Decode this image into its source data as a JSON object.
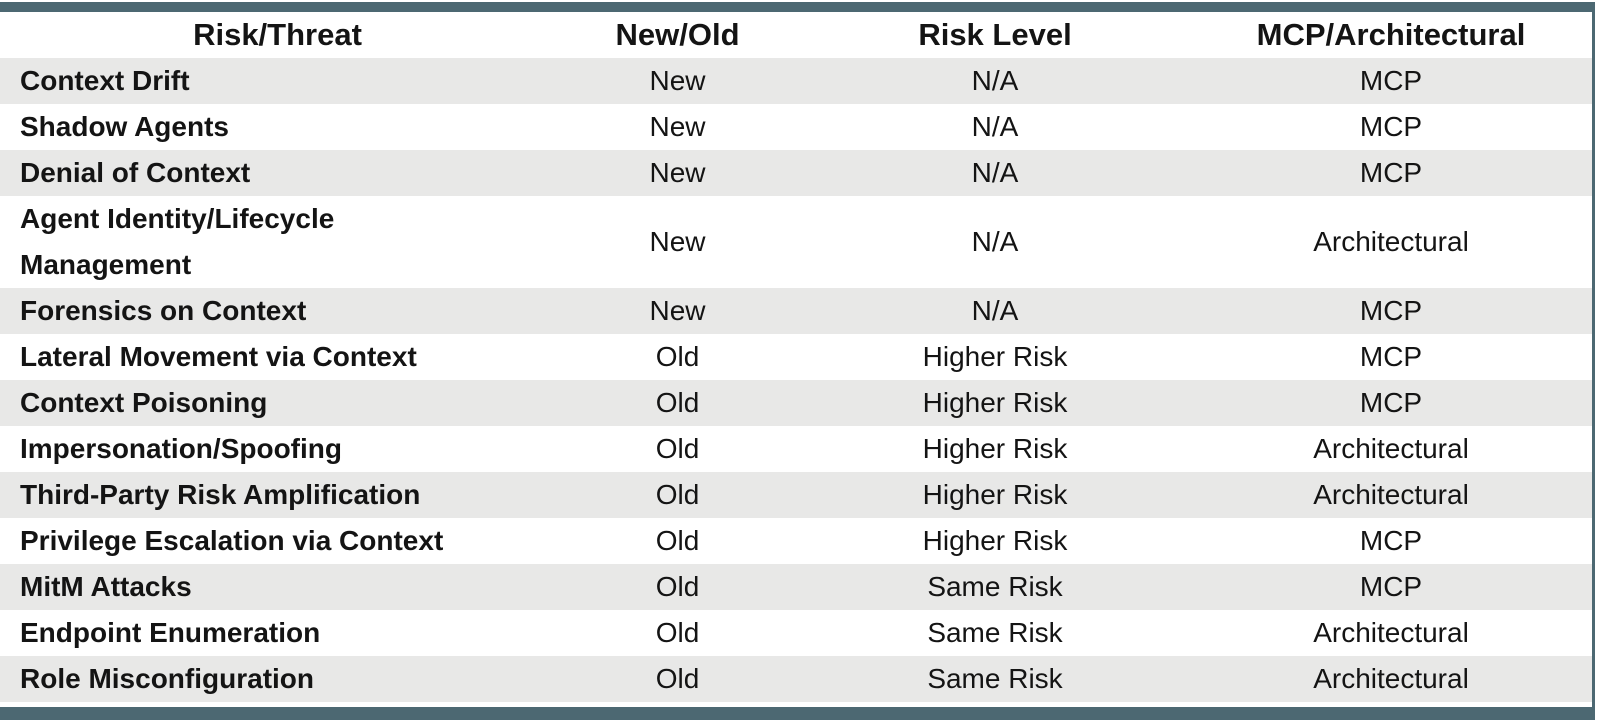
{
  "colors": {
    "accent": "#4c6872",
    "stripe": "#e8e8e7",
    "text": "#141414"
  },
  "table": {
    "columns": [
      "Risk/Threat",
      "New/Old",
      "Risk Level",
      "MCP/Architectural"
    ],
    "rows": [
      {
        "risk_threat": "Context Drift",
        "new_old": "New",
        "risk_level": "N/A",
        "mcp_architectural": "MCP"
      },
      {
        "risk_threat": "Shadow Agents",
        "new_old": "New",
        "risk_level": "N/A",
        "mcp_architectural": "MCP"
      },
      {
        "risk_threat": "Denial of Context",
        "new_old": "New",
        "risk_level": "N/A",
        "mcp_architectural": "MCP"
      },
      {
        "risk_threat": "Agent Identity/Lifecycle\nManagement",
        "new_old": "New",
        "risk_level": "N/A",
        "mcp_architectural": "Architectural"
      },
      {
        "risk_threat": "Forensics on Context",
        "new_old": "New",
        "risk_level": "N/A",
        "mcp_architectural": "MCP"
      },
      {
        "risk_threat": "Lateral Movement via Context",
        "new_old": "Old",
        "risk_level": "Higher Risk",
        "mcp_architectural": "MCP"
      },
      {
        "risk_threat": "Context Poisoning",
        "new_old": "Old",
        "risk_level": "Higher Risk",
        "mcp_architectural": "MCP"
      },
      {
        "risk_threat": "Impersonation/Spoofing",
        "new_old": "Old",
        "risk_level": "Higher Risk",
        "mcp_architectural": "Architectural"
      },
      {
        "risk_threat": "Third-Party Risk Amplification",
        "new_old": "Old",
        "risk_level": "Higher Risk",
        "mcp_architectural": "Architectural"
      },
      {
        "risk_threat": "Privilege Escalation via Context",
        "new_old": "Old",
        "risk_level": "Higher Risk",
        "mcp_architectural": "MCP"
      },
      {
        "risk_threat": "MitM Attacks",
        "new_old": "Old",
        "risk_level": "Same Risk",
        "mcp_architectural": "MCP"
      },
      {
        "risk_threat": "Endpoint Enumeration",
        "new_old": "Old",
        "risk_level": "Same Risk",
        "mcp_architectural": "Architectural"
      },
      {
        "risk_threat": "Role Misconfiguration",
        "new_old": "Old",
        "risk_level": "Same Risk",
        "mcp_architectural": "Architectural"
      }
    ]
  }
}
